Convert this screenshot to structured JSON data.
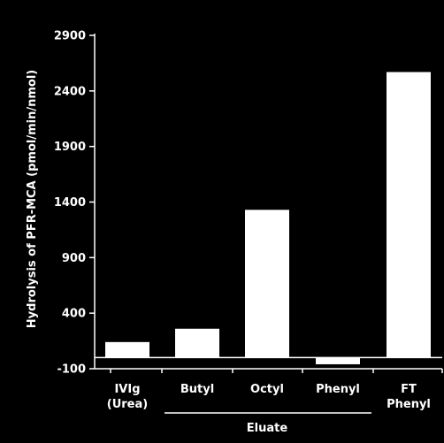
{
  "chart_data": {
    "type": "bar",
    "title": "",
    "ylabel": "Hydrolysis of PFR-MCA (pmol/min/nmol)",
    "xlabel": "",
    "group_label": "Eluate",
    "categories": [
      [
        "IVIg",
        "(Urea)"
      ],
      [
        "Butyl"
      ],
      [
        "Octyl"
      ],
      [
        "Phenyl"
      ],
      [
        "FT",
        "Phenyl"
      ]
    ],
    "values": [
      140,
      260,
      1330,
      -60,
      2570
    ],
    "ylim": [
      -100,
      2900
    ],
    "yticks": [
      -100,
      400,
      900,
      1400,
      1900,
      2400,
      2900
    ],
    "grid": false,
    "colors": {
      "background": "#000000",
      "bars": "#ffffff",
      "axes": "#ffffff"
    }
  }
}
